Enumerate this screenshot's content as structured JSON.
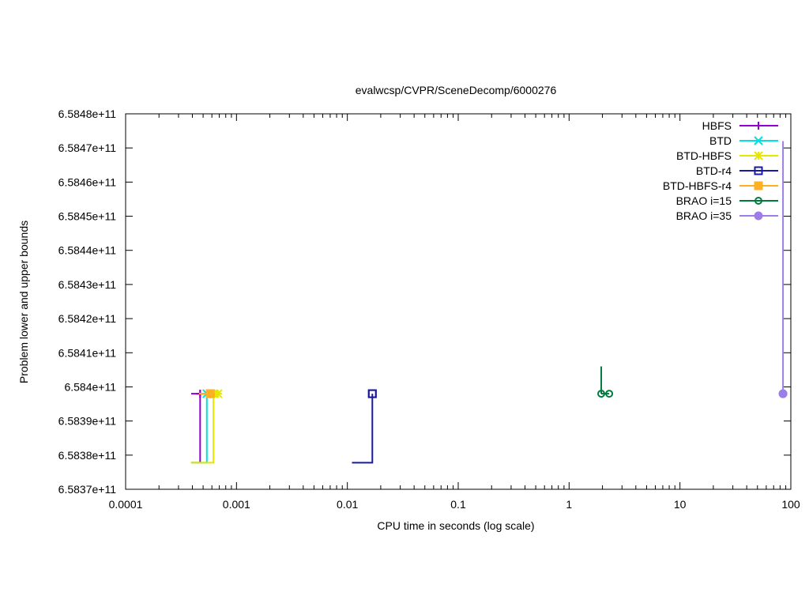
{
  "chart_data": {
    "type": "line",
    "title": "evalwcsp/CVPR/SceneDecomp/6000276",
    "xlabel": "CPU time in seconds (log scale)",
    "ylabel": "Problem lower and upper bounds",
    "x_scale": "log",
    "xlim": [
      0.0001,
      100
    ],
    "ylim": [
      658370000000,
      658480000000
    ],
    "x_ticks": [
      {
        "value": 0.0001,
        "label": "0.0001"
      },
      {
        "value": 0.001,
        "label": "0.001"
      },
      {
        "value": 0.01,
        "label": "0.01"
      },
      {
        "value": 0.1,
        "label": "0.1"
      },
      {
        "value": 1,
        "label": "1"
      },
      {
        "value": 10,
        "label": "10"
      },
      {
        "value": 100,
        "label": "100"
      }
    ],
    "y_ticks": [
      {
        "value": 658370000000,
        "label": "6.5837e+11"
      },
      {
        "value": 658380000000,
        "label": "6.5838e+11"
      },
      {
        "value": 658390000000,
        "label": "6.5839e+11"
      },
      {
        "value": 658400000000,
        "label": "6.584e+11"
      },
      {
        "value": 658410000000,
        "label": "6.5841e+11"
      },
      {
        "value": 658420000000,
        "label": "6.5842e+11"
      },
      {
        "value": 658430000000,
        "label": "6.5843e+11"
      },
      {
        "value": 658440000000,
        "label": "6.5844e+11"
      },
      {
        "value": 658450000000,
        "label": "6.5845e+11"
      },
      {
        "value": 658460000000,
        "label": "6.5846e+11"
      },
      {
        "value": 658470000000,
        "label": "6.5847e+11"
      },
      {
        "value": 658480000000,
        "label": "6.5848e+11"
      }
    ],
    "grid": false,
    "legend_position": "top-right",
    "series": [
      {
        "name": "HBFS",
        "color": "#9400d3",
        "marker": "plus",
        "lower": [
          [
            0.00039,
            658377800000
          ],
          [
            0.00047,
            658377800000
          ],
          [
            0.00047,
            658398000000
          ]
        ],
        "upper": [
          [
            0.00039,
            658398000000
          ],
          [
            0.00047,
            658398000000
          ]
        ]
      },
      {
        "name": "BTD",
        "color": "#00e0e0",
        "marker": "cross",
        "lower": [
          [
            0.00039,
            658377800000
          ],
          [
            0.00054,
            658377800000
          ],
          [
            0.00054,
            658398000000
          ]
        ],
        "upper": [
          [
            0.00054,
            658398000000
          ],
          [
            0.00058,
            658398000000
          ]
        ]
      },
      {
        "name": "BTD-HBFS",
        "color": "#e6e600",
        "marker": "star",
        "lower": [
          [
            0.00039,
            658377800000
          ],
          [
            0.00062,
            658377800000
          ],
          [
            0.00062,
            658398000000
          ]
        ],
        "upper": [
          [
            0.00062,
            658398000000
          ],
          [
            0.00068,
            658398000000
          ]
        ]
      },
      {
        "name": "BTD-r4",
        "color": "#1a1aa0",
        "marker": "open-square",
        "lower": [
          [
            0.011,
            658377800000
          ],
          [
            0.0168,
            658377800000
          ],
          [
            0.0168,
            658398000000
          ]
        ],
        "upper": [
          [
            0.0168,
            658398000000
          ]
        ]
      },
      {
        "name": "BTD-HBFS-r4",
        "color": "#ffb020",
        "marker": "filled-square",
        "lower": [
          [
            0.00046,
            658398000000
          ],
          [
            0.00058,
            658398000000
          ]
        ],
        "upper": [
          [
            0.00046,
            658398000000
          ],
          [
            0.00058,
            658398000000
          ]
        ]
      },
      {
        "name": "BRAO i=15",
        "color": "#007a3d",
        "marker": "open-circle",
        "lower": [
          [
            1.95,
            658398000000
          ],
          [
            2.3,
            658398000000
          ]
        ],
        "upper": [
          [
            1.95,
            658406000000
          ],
          [
            1.95,
            658398000000
          ]
        ]
      },
      {
        "name": "BRAO i=35",
        "color": "#9b7fe6",
        "marker": "filled-circle",
        "lower": [
          [
            85,
            658398000000
          ]
        ],
        "upper": [
          [
            85,
            658472000000
          ],
          [
            85,
            658398000000
          ]
        ]
      }
    ]
  }
}
